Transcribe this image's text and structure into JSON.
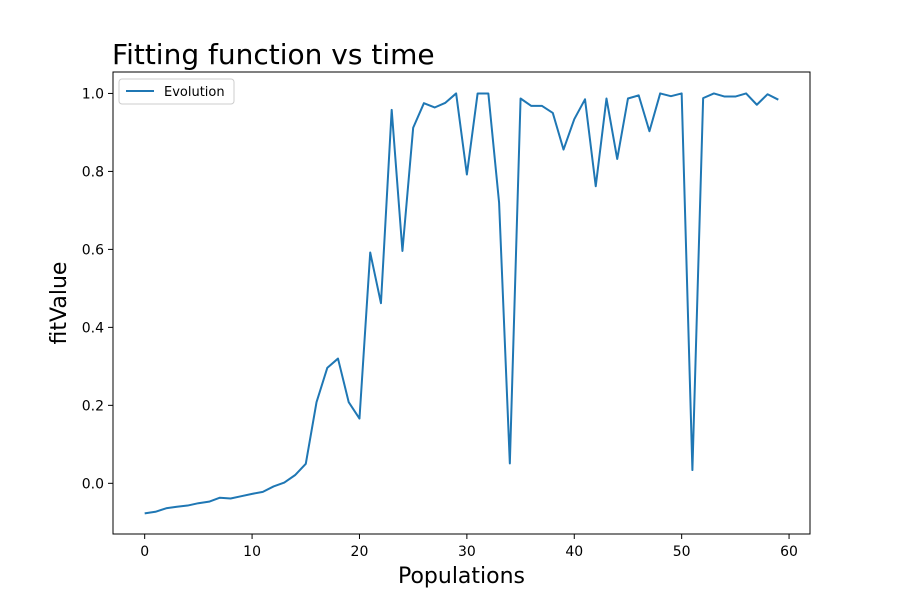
{
  "chart_data": {
    "type": "line",
    "title": "Fitting function vs time",
    "xlabel": "Populations",
    "ylabel": "fitValue",
    "xlim": [
      -2.95,
      61.95
    ],
    "ylim": [
      -0.13,
      1.055
    ],
    "xticks": [
      0,
      10,
      20,
      30,
      40,
      50,
      60
    ],
    "yticks": [
      0.0,
      0.2,
      0.4,
      0.6,
      0.8,
      1.0
    ],
    "xtick_labels": [
      "0",
      "10",
      "20",
      "30",
      "40",
      "50",
      "60"
    ],
    "ytick_labels": [
      "0.0",
      "0.2",
      "0.4",
      "0.6",
      "0.8",
      "1.0"
    ],
    "grid": false,
    "legend_position": "upper-left",
    "series": [
      {
        "name": "Evolution",
        "color": "#1f77b4",
        "x": [
          0,
          1,
          2,
          3,
          4,
          5,
          6,
          7,
          8,
          9,
          10,
          11,
          12,
          13,
          14,
          15,
          16,
          17,
          18,
          19,
          20,
          21,
          22,
          23,
          24,
          25,
          26,
          27,
          28,
          29,
          30,
          31,
          32,
          33,
          34,
          35,
          36,
          37,
          38,
          39,
          40,
          41,
          42,
          43,
          44,
          45,
          46,
          47,
          48,
          49,
          50,
          51,
          52,
          53,
          54,
          55,
          56,
          57,
          58,
          59
        ],
        "y": [
          -0.077,
          -0.073,
          -0.064,
          -0.06,
          -0.057,
          -0.051,
          -0.047,
          -0.037,
          -0.039,
          -0.033,
          -0.027,
          -0.022,
          -0.008,
          0.002,
          0.021,
          0.05,
          0.208,
          0.296,
          0.32,
          0.208,
          0.166,
          0.592,
          0.462,
          0.958,
          0.596,
          0.912,
          0.975,
          0.964,
          0.976,
          1.0,
          0.792,
          1.0,
          1.0,
          0.72,
          0.051,
          0.987,
          0.968,
          0.968,
          0.95,
          0.856,
          0.934,
          0.985,
          0.762,
          0.987,
          0.832,
          0.987,
          0.995,
          0.903,
          1.0,
          0.993,
          1.0,
          0.034,
          0.988,
          1.0,
          0.992,
          0.992,
          1.0,
          0.971,
          0.998,
          0.984
        ]
      }
    ]
  }
}
